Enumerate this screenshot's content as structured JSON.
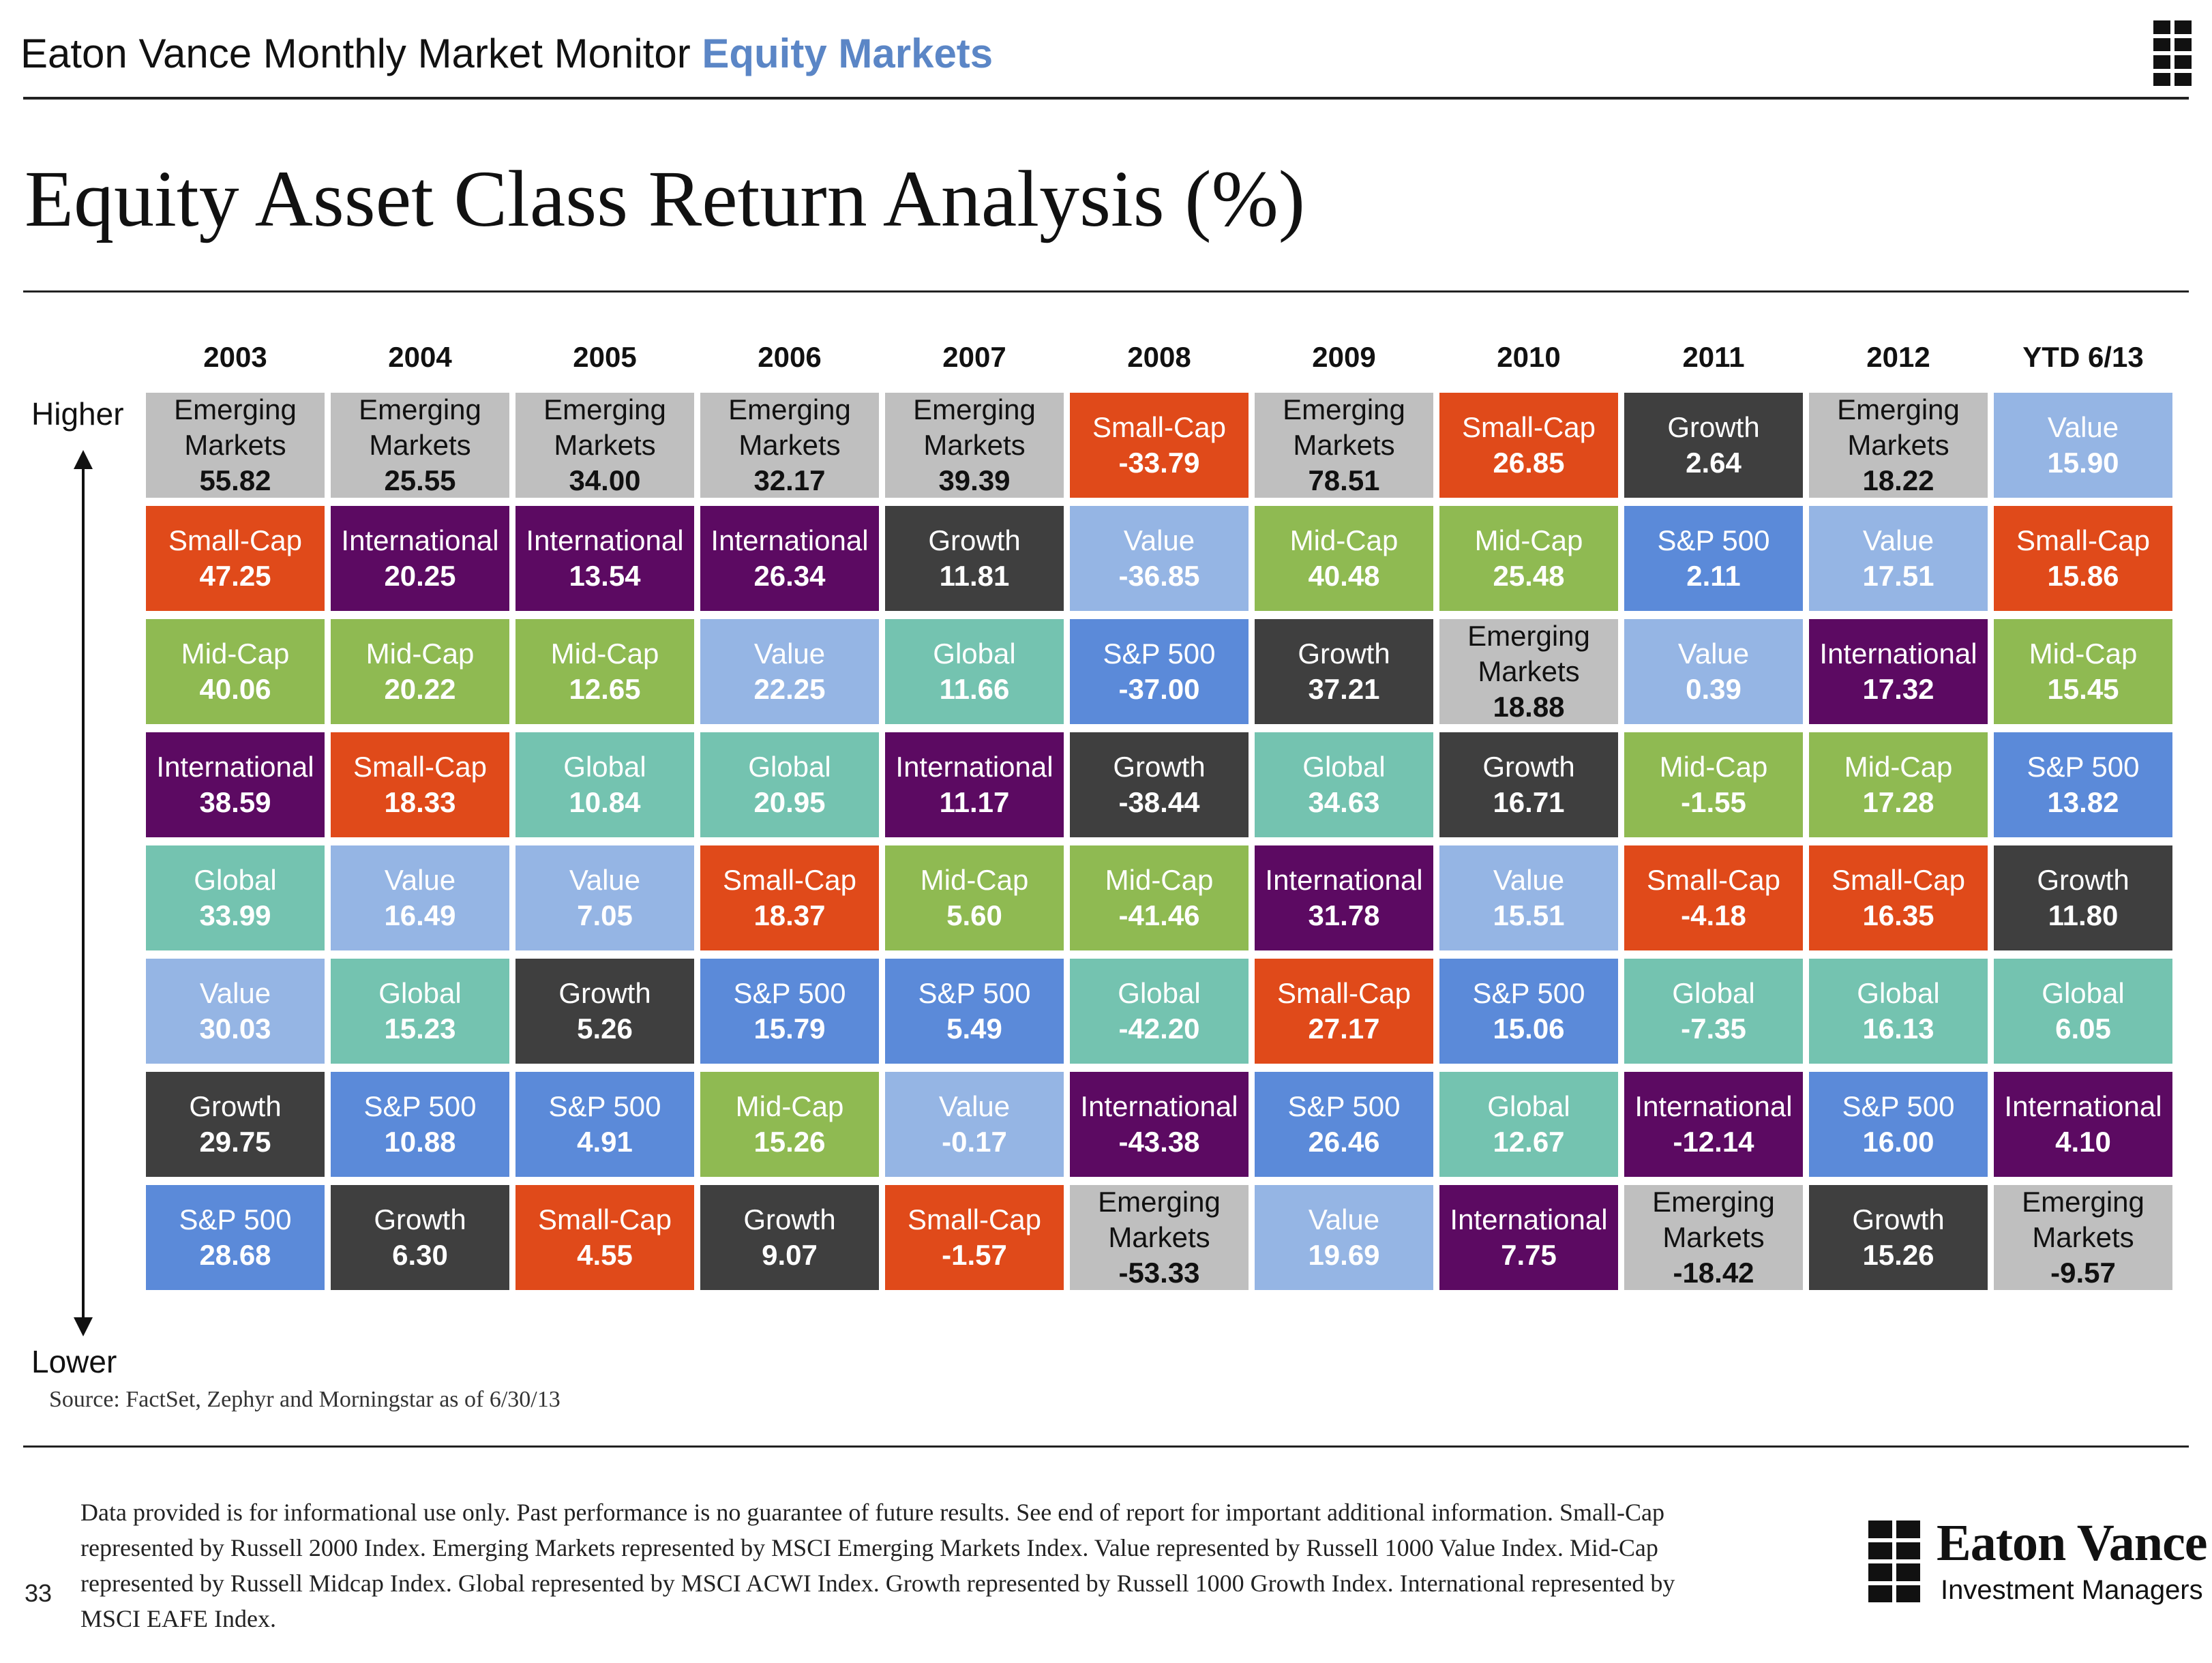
{
  "header": {
    "title": "Eaton Vance Monthly Market Monitor",
    "section": "Equity Markets"
  },
  "page_title": "Equity Asset Class Return Analysis (%)",
  "axis": {
    "higher": "Higher",
    "lower": "Lower"
  },
  "colors": {
    "Emerging Markets": "#bfbfbf",
    "Small-Cap": "#e04a1a",
    "International": "#5c0a62",
    "Mid-Cap": "#8fba52",
    "Global": "#74c3b0",
    "Value": "#95b5e4",
    "Growth": "#3f3f3f",
    "S&P 500": "#5b8ad9"
  },
  "source": "Source: FactSet, Zephyr and Morningstar as of 6/30/13",
  "disclaimer": "Data provided is for informational use only. Past performance is no guarantee of future results. See end of report for important additional information. Small-Cap represented by Russell 2000 Index. Emerging Markets represented by MSCI Emerging Markets Index. Value represented by Russell 1000 Value Index. Mid-Cap represented by Russell Midcap Index. Global represented by MSCI ACWI Index. Growth represented by Russell 1000 Growth Index.  International represented by MSCI EAFE Index.",
  "page_number": "33",
  "logo": {
    "name": "Eaton Vance",
    "subtitle": "Investment Managers"
  },
  "chart_data": {
    "type": "table",
    "title": "Equity Asset Class Return Analysis (%)",
    "columns": [
      {
        "year": "2003",
        "ranked": [
          {
            "category": "Emerging Markets",
            "value": "55.82"
          },
          {
            "category": "Small-Cap",
            "value": "47.25"
          },
          {
            "category": "Mid-Cap",
            "value": "40.06"
          },
          {
            "category": "International",
            "value": "38.59"
          },
          {
            "category": "Global",
            "value": "33.99"
          },
          {
            "category": "Value",
            "value": "30.03"
          },
          {
            "category": "Growth",
            "value": "29.75"
          },
          {
            "category": "S&P 500",
            "value": "28.68"
          }
        ]
      },
      {
        "year": "2004",
        "ranked": [
          {
            "category": "Emerging Markets",
            "value": "25.55"
          },
          {
            "category": "International",
            "value": "20.25"
          },
          {
            "category": "Mid-Cap",
            "value": "20.22"
          },
          {
            "category": "Small-Cap",
            "value": "18.33"
          },
          {
            "category": "Value",
            "value": "16.49"
          },
          {
            "category": "Global",
            "value": "15.23"
          },
          {
            "category": "S&P 500",
            "value": "10.88"
          },
          {
            "category": "Growth",
            "value": "6.30"
          }
        ]
      },
      {
        "year": "2005",
        "ranked": [
          {
            "category": "Emerging Markets",
            "value": "34.00"
          },
          {
            "category": "International",
            "value": "13.54"
          },
          {
            "category": "Mid-Cap",
            "value": "12.65"
          },
          {
            "category": "Global",
            "value": "10.84"
          },
          {
            "category": "Value",
            "value": "7.05"
          },
          {
            "category": "Growth",
            "value": "5.26"
          },
          {
            "category": "S&P 500",
            "value": "4.91"
          },
          {
            "category": "Small-Cap",
            "value": "4.55"
          }
        ]
      },
      {
        "year": "2006",
        "ranked": [
          {
            "category": "Emerging Markets",
            "value": "32.17"
          },
          {
            "category": "International",
            "value": "26.34"
          },
          {
            "category": "Value",
            "value": "22.25"
          },
          {
            "category": "Global",
            "value": "20.95"
          },
          {
            "category": "Small-Cap",
            "value": "18.37"
          },
          {
            "category": "S&P 500",
            "value": "15.79"
          },
          {
            "category": "Mid-Cap",
            "value": "15.26"
          },
          {
            "category": "Growth",
            "value": "9.07"
          }
        ]
      },
      {
        "year": "2007",
        "ranked": [
          {
            "category": "Emerging Markets",
            "value": "39.39"
          },
          {
            "category": "Growth",
            "value": "11.81"
          },
          {
            "category": "Global",
            "value": "11.66"
          },
          {
            "category": "International",
            "value": "11.17"
          },
          {
            "category": "Mid-Cap",
            "value": "5.60"
          },
          {
            "category": "S&P 500",
            "value": "5.49"
          },
          {
            "category": "Value",
            "value": "-0.17"
          },
          {
            "category": "Small-Cap",
            "value": "-1.57"
          }
        ]
      },
      {
        "year": "2008",
        "ranked": [
          {
            "category": "Small-Cap",
            "value": "-33.79"
          },
          {
            "category": "Value",
            "value": "-36.85"
          },
          {
            "category": "S&P 500",
            "value": "-37.00"
          },
          {
            "category": "Growth",
            "value": "-38.44"
          },
          {
            "category": "Mid-Cap",
            "value": "-41.46"
          },
          {
            "category": "Global",
            "value": "-42.20"
          },
          {
            "category": "International",
            "value": "-43.38"
          },
          {
            "category": "Emerging Markets",
            "value": "-53.33"
          }
        ]
      },
      {
        "year": "2009",
        "ranked": [
          {
            "category": "Emerging Markets",
            "value": "78.51"
          },
          {
            "category": "Mid-Cap",
            "value": "40.48"
          },
          {
            "category": "Growth",
            "value": "37.21"
          },
          {
            "category": "Global",
            "value": "34.63"
          },
          {
            "category": "International",
            "value": "31.78"
          },
          {
            "category": "Small-Cap",
            "value": "27.17"
          },
          {
            "category": "S&P 500",
            "value": "26.46"
          },
          {
            "category": "Value",
            "value": "19.69"
          }
        ]
      },
      {
        "year": "2010",
        "ranked": [
          {
            "category": "Small-Cap",
            "value": "26.85"
          },
          {
            "category": "Mid-Cap",
            "value": "25.48"
          },
          {
            "category": "Emerging Markets",
            "value": "18.88"
          },
          {
            "category": "Growth",
            "value": "16.71"
          },
          {
            "category": "Value",
            "value": "15.51"
          },
          {
            "category": "S&P 500",
            "value": "15.06"
          },
          {
            "category": "Global",
            "value": "12.67"
          },
          {
            "category": "International",
            "value": "7.75"
          }
        ]
      },
      {
        "year": "2011",
        "ranked": [
          {
            "category": "Growth",
            "value": "2.64"
          },
          {
            "category": "S&P 500",
            "value": "2.11"
          },
          {
            "category": "Value",
            "value": "0.39"
          },
          {
            "category": "Mid-Cap",
            "value": "-1.55"
          },
          {
            "category": "Small-Cap",
            "value": "-4.18"
          },
          {
            "category": "Global",
            "value": "-7.35"
          },
          {
            "category": "International",
            "value": "-12.14"
          },
          {
            "category": "Emerging Markets",
            "value": "-18.42"
          }
        ]
      },
      {
        "year": "2012",
        "ranked": [
          {
            "category": "Emerging Markets",
            "value": "18.22"
          },
          {
            "category": "Value",
            "value": "17.51"
          },
          {
            "category": "International",
            "value": "17.32"
          },
          {
            "category": "Mid-Cap",
            "value": "17.28"
          },
          {
            "category": "Small-Cap",
            "value": "16.35"
          },
          {
            "category": "Global",
            "value": "16.13"
          },
          {
            "category": "S&P 500",
            "value": "16.00"
          },
          {
            "category": "Growth",
            "value": "15.26"
          }
        ]
      },
      {
        "year": "YTD 6/13",
        "ranked": [
          {
            "category": "Value",
            "value": "15.90"
          },
          {
            "category": "Small-Cap",
            "value": "15.86"
          },
          {
            "category": "Mid-Cap",
            "value": "15.45"
          },
          {
            "category": "S&P 500",
            "value": "13.82"
          },
          {
            "category": "Growth",
            "value": "11.80"
          },
          {
            "category": "Global",
            "value": "6.05"
          },
          {
            "category": "International",
            "value": "4.10"
          },
          {
            "category": "Emerging Markets",
            "value": "-9.57"
          }
        ]
      }
    ]
  }
}
